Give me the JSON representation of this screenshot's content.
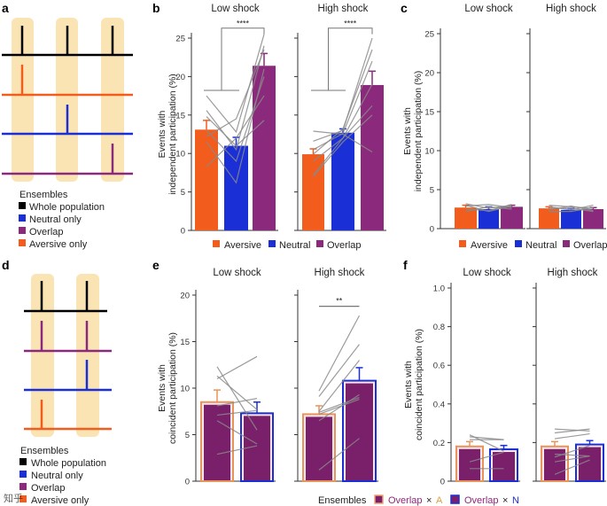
{
  "panels": {
    "a": {
      "label": "a",
      "legend_title": "Ensembles",
      "legend": [
        "Whole population",
        "Neutral only",
        "Overlap",
        "Aversive only"
      ]
    },
    "d": {
      "label": "d",
      "legend_title": "Ensembles",
      "legend": [
        "Whole population",
        "Neutral only",
        "Overlap",
        "Aversive only"
      ]
    }
  },
  "colors": {
    "aversive": "#f25c1c",
    "neutral": "#1a2fd6",
    "overlap": "#8b2a7c",
    "whole": "#000000",
    "highlight": "#fbe4b4",
    "paired": "#8a8a8a",
    "bar_dark": "#7a1f6a"
  },
  "legend_bc": [
    "Aversive",
    "Neutral",
    "Overlap"
  ],
  "legend_ef": {
    "title": "Ensembles",
    "items": [
      {
        "name": "Overlap",
        "times": "×",
        "suffix": "A"
      },
      {
        "name": "Overlap",
        "times": "×",
        "suffix": "N"
      }
    ]
  },
  "watermark": "知乎",
  "chart_data": [
    {
      "panel": "b",
      "type": "bar",
      "ylabel": [
        "Events with",
        "independent participation (%)"
      ],
      "ylim": [
        0,
        25
      ],
      "yticks": [
        0,
        5,
        10,
        15,
        20,
        25
      ],
      "subplots": [
        {
          "title": "Low shock",
          "categories": [
            "Aversive",
            "Neutral",
            "Overlap"
          ],
          "values": [
            13.1,
            11.0,
            21.4
          ],
          "errors": [
            1.2,
            1.1,
            1.6
          ],
          "significance": "****",
          "paired": [
            [
              17.5,
              12.8,
              25.5
            ],
            [
              15.6,
              10.5,
              24
            ],
            [
              12.2,
              14.5,
              23.5
            ],
            [
              11.5,
              6.2,
              21
            ],
            [
              8.3,
              12,
              17.5
            ],
            [
              14.8,
              11,
              14.3
            ],
            [
              13,
              9,
              20
            ]
          ]
        },
        {
          "title": "High shock",
          "categories": [
            "Aversive",
            "Neutral",
            "Overlap"
          ],
          "values": [
            9.9,
            12.7,
            18.9
          ],
          "errors": [
            0.7,
            0.5,
            1.8
          ],
          "significance": "****",
          "paired": [
            [
              12.9,
              12.5,
              10.2
            ],
            [
              11.6,
              13,
              25
            ],
            [
              9.9,
              13.2,
              23.5
            ],
            [
              7.2,
              12,
              16.2
            ],
            [
              7,
              11.5,
              15
            ],
            [
              10.5,
              12.6,
              22
            ],
            [
              9,
              12,
              19
            ]
          ]
        }
      ]
    },
    {
      "panel": "c",
      "type": "bar",
      "ylabel": [
        "Events with",
        "independent participation (%)"
      ],
      "ylim": [
        0,
        25
      ],
      "yticks": [
        0,
        5,
        10,
        15,
        20,
        25
      ],
      "subplots": [
        {
          "title": "Low shock",
          "categories": [
            "Aversive",
            "Neutral",
            "Overlap"
          ],
          "values": [
            2.7,
            2.5,
            2.8
          ],
          "errors": [
            0.3,
            0.3,
            0.2
          ],
          "paired": [
            [
              3.2,
              2.6,
              3.0
            ],
            [
              2.9,
              3.1,
              2.7
            ],
            [
              2.5,
              2.3,
              3.1
            ],
            [
              2.2,
              2.8,
              2.5
            ],
            [
              3.0,
              2.2,
              2.9
            ]
          ]
        },
        {
          "title": "High shock",
          "categories": [
            "Aversive",
            "Neutral",
            "Overlap"
          ],
          "values": [
            2.6,
            2.4,
            2.5
          ],
          "errors": [
            0.2,
            0.2,
            0.2
          ],
          "paired": [
            [
              3.0,
              2.8,
              2.6
            ],
            [
              2.8,
              2.4,
              3.0
            ],
            [
              2.4,
              2.9,
              2.3
            ],
            [
              2.2,
              2.2,
              2.7
            ],
            [
              2.7,
              2.6,
              2.2
            ]
          ]
        }
      ]
    },
    {
      "panel": "e",
      "type": "bar",
      "ylabel": [
        "Events with",
        "coincident participation (%)"
      ],
      "ylim": [
        0,
        20
      ],
      "yticks": [
        0,
        5,
        10,
        15,
        20
      ],
      "subplots": [
        {
          "title": "Low shock",
          "categories": [
            "Overlap × A",
            "Overlap × N"
          ],
          "values": [
            8.5,
            7.3
          ],
          "errors": [
            1.3,
            1.2
          ],
          "paired": [
            [
              12.3,
              5.5
            ],
            [
              11.3,
              7.7
            ],
            [
              8.1,
              8.9
            ],
            [
              7.1,
              7.6
            ],
            [
              6.5,
              4
            ],
            [
              2.9,
              3.8
            ],
            [
              11,
              13.4
            ]
          ]
        },
        {
          "title": "High shock",
          "categories": [
            "Overlap × A",
            "Overlap × N"
          ],
          "values": [
            7.2,
            10.8
          ],
          "errors": [
            0.9,
            1.4
          ],
          "significance": "**",
          "paired": [
            [
              9.7,
              17.8
            ],
            [
              9.1,
              14.7
            ],
            [
              7.5,
              13
            ],
            [
              6.5,
              9.3
            ],
            [
              7.4,
              9
            ],
            [
              7.2,
              8.8
            ],
            [
              1.2,
              4.6
            ]
          ]
        }
      ]
    },
    {
      "panel": "f",
      "type": "bar",
      "ylabel": [
        "Events with",
        "coincident participation (%)"
      ],
      "ylim": [
        0,
        1.0
      ],
      "yticks": [
        "0",
        "0.2",
        "0.4",
        "0.6",
        "0.8",
        "1.0"
      ],
      "subplots": [
        {
          "title": "Low shock",
          "categories": [
            "Overlap × A",
            "Overlap × N"
          ],
          "values": [
            0.18,
            0.165
          ],
          "errors": [
            0.025,
            0.02
          ],
          "paired": [
            [
              0.24,
              0.155
            ],
            [
              0.23,
              0.215
            ],
            [
              0.215,
              0.215
            ],
            [
              0.1,
              0.15
            ],
            [
              0.065,
              0.065
            ]
          ]
        },
        {
          "title": "High shock",
          "categories": [
            "Overlap × A",
            "Overlap × N"
          ],
          "values": [
            0.18,
            0.19
          ],
          "errors": [
            0.025,
            0.02
          ],
          "paired": [
            [
              0.27,
              0.26
            ],
            [
              0.25,
              0.27
            ],
            [
              0.22,
              0.245
            ],
            [
              0.14,
              0.13
            ],
            [
              0.1,
              0.13
            ],
            [
              0.035,
              0.11
            ],
            [
              0.125,
              0.185
            ]
          ]
        }
      ]
    }
  ]
}
